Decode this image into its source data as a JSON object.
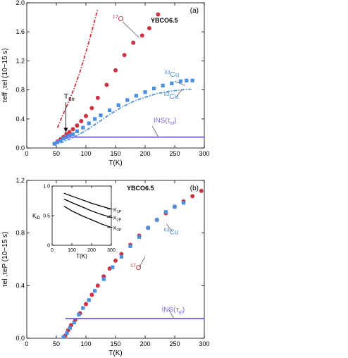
{
  "chart_data": [
    {
      "type": "scatter",
      "panel_label": "(a)",
      "sample_label": "YBCO6.5",
      "xlabel": "T(K)",
      "ylabel": "τeff ,τel (10−15 s)",
      "xlim": [
        0,
        300
      ],
      "ylim": [
        0,
        2.0
      ],
      "xticks": [
        0,
        50,
        100,
        150,
        200,
        250,
        300
      ],
      "yticks": [
        0.0,
        0.4,
        0.8,
        1.2,
        1.6,
        2.0
      ],
      "colors": {
        "O17": "#cc3344",
        "Cu63": "#4a8fe0",
        "INS": "#7b6cf0"
      },
      "series": [
        {
          "name": "17O",
          "kind": "points",
          "marker": "circle",
          "x": [
            47,
            52,
            57,
            62,
            67,
            72,
            78,
            85,
            92,
            100,
            110,
            120,
            135,
            150,
            165,
            180,
            195,
            207,
            222
          ],
          "y": [
            0.06,
            0.09,
            0.12,
            0.15,
            0.19,
            0.22,
            0.26,
            0.31,
            0.37,
            0.44,
            0.55,
            0.69,
            0.87,
            1.07,
            1.28,
            1.45,
            1.55,
            1.65,
            1.84
          ]
        },
        {
          "name": "17O",
          "kind": "line",
          "style": "dash-dot",
          "x": [
            52,
            60,
            70,
            80,
            90,
            100,
            110,
            120
          ],
          "y": [
            0.28,
            0.44,
            0.62,
            0.82,
            1.05,
            1.32,
            1.61,
            1.92
          ]
        },
        {
          "name": "63Cu",
          "kind": "points",
          "marker": "square",
          "x": [
            47,
            52,
            57,
            62,
            67,
            72,
            78,
            85,
            95,
            105,
            115,
            125,
            140,
            155,
            170,
            185,
            200,
            215,
            230,
            245,
            260,
            270,
            280
          ],
          "y": [
            0.06,
            0.08,
            0.1,
            0.13,
            0.15,
            0.17,
            0.19,
            0.23,
            0.28,
            0.34,
            0.4,
            0.45,
            0.52,
            0.59,
            0.66,
            0.72,
            0.77,
            0.82,
            0.86,
            0.89,
            0.92,
            0.93,
            0.93
          ]
        },
        {
          "name": "63Cu",
          "kind": "line",
          "style": "dash-dot",
          "x": [
            45,
            60,
            80,
            100,
            120,
            140,
            160,
            180,
            200,
            220,
            240,
            260,
            278
          ],
          "y": [
            0.04,
            0.08,
            0.15,
            0.24,
            0.35,
            0.46,
            0.56,
            0.64,
            0.7,
            0.75,
            0.78,
            0.8,
            0.81
          ]
        },
        {
          "name": "INS(τel)",
          "kind": "line",
          "style": "solid",
          "x": [
            65,
            300
          ],
          "y": [
            0.15,
            0.15
          ]
        }
      ],
      "annotations": [
        {
          "text": "TStr",
          "x": 63,
          "y": 0.68
        },
        {
          "text": "17O",
          "x": 145,
          "y": 1.75
        },
        {
          "text": "63Cu",
          "x": 233,
          "y": 0.98
        },
        {
          "text": "63Cu",
          "x": 232,
          "y": 0.68
        },
        {
          "text": "INS(τel)",
          "x": 214,
          "y": 0.35
        }
      ]
    },
    {
      "type": "scatter",
      "panel_label": "(b)",
      "sample_label": "YBCO6.5",
      "xlabel": "T(K)",
      "ylabel": "τel ,τeP (10−15 s)",
      "xlim": [
        0,
        300
      ],
      "ylim": [
        0,
        1.2
      ],
      "xticks": [
        0,
        50,
        100,
        150,
        200,
        250,
        300
      ],
      "yticks": [
        0.0,
        0.4,
        0.8,
        1.2
      ],
      "colors": {
        "O17": "#cc3344",
        "Cu63": "#4a8fe0",
        "INS": "#7b6cf0"
      },
      "series": [
        {
          "name": "17O",
          "kind": "points",
          "marker": "circle",
          "x": [
            65,
            70,
            75,
            82,
            90,
            100,
            110,
            120,
            130,
            140,
            150,
            160,
            175,
            190,
            205,
            220,
            235,
            250,
            265,
            280,
            295
          ],
          "y": [
            0.02,
            0.06,
            0.1,
            0.14,
            0.19,
            0.26,
            0.33,
            0.4,
            0.47,
            0.53,
            0.59,
            0.64,
            0.71,
            0.78,
            0.84,
            0.9,
            0.95,
            1.0,
            1.04,
            1.08,
            1.12
          ]
        },
        {
          "name": "63Cu",
          "kind": "points",
          "marker": "square",
          "x": [
            62,
            68,
            73,
            80,
            88,
            95,
            105,
            115,
            130,
            145,
            160,
            175,
            190,
            205,
            220,
            235,
            250,
            265
          ],
          "y": [
            0.01,
            0.04,
            0.08,
            0.12,
            0.18,
            0.23,
            0.29,
            0.36,
            0.45,
            0.54,
            0.62,
            0.7,
            0.77,
            0.84,
            0.9,
            0.96,
            1.0,
            1.03
          ]
        },
        {
          "name": "INS(τel)",
          "kind": "line",
          "style": "solid",
          "x": [
            65,
            300
          ],
          "y": [
            0.15,
            0.15
          ]
        }
      ],
      "annotations": [
        {
          "text": "17O",
          "x": 175,
          "y": 0.52
        },
        {
          "text": "63Cu",
          "x": 232,
          "y": 0.79
        },
        {
          "text": "INS(τel)",
          "x": 228,
          "y": 0.2
        }
      ],
      "inset": {
        "type": "line",
        "xlabel": "T(K)",
        "ylabel": "KiD",
        "xlim": [
          0,
          300
        ],
        "ylim": [
          0,
          1.0
        ],
        "xticks": [
          0,
          100,
          200,
          300
        ],
        "yticks": [
          0,
          0.5,
          1.0
        ],
        "ytick_labels": [
          "0",
          "0.5",
          "1.0"
        ],
        "series": [
          {
            "name": "K1P",
            "x": [
              60,
              100,
              150,
              200,
              250,
              300
            ],
            "y": [
              0.88,
              0.83,
              0.77,
              0.71,
              0.66,
              0.61
            ]
          },
          {
            "name": "K2P",
            "x": [
              60,
              100,
              150,
              200,
              250,
              300
            ],
            "y": [
              0.78,
              0.72,
              0.65,
              0.58,
              0.52,
              0.47
            ]
          },
          {
            "name": "K3P",
            "x": [
              60,
              100,
              150,
              200,
              250,
              300
            ],
            "y": [
              0.66,
              0.58,
              0.5,
              0.43,
              0.36,
              0.3
            ]
          }
        ]
      }
    }
  ]
}
